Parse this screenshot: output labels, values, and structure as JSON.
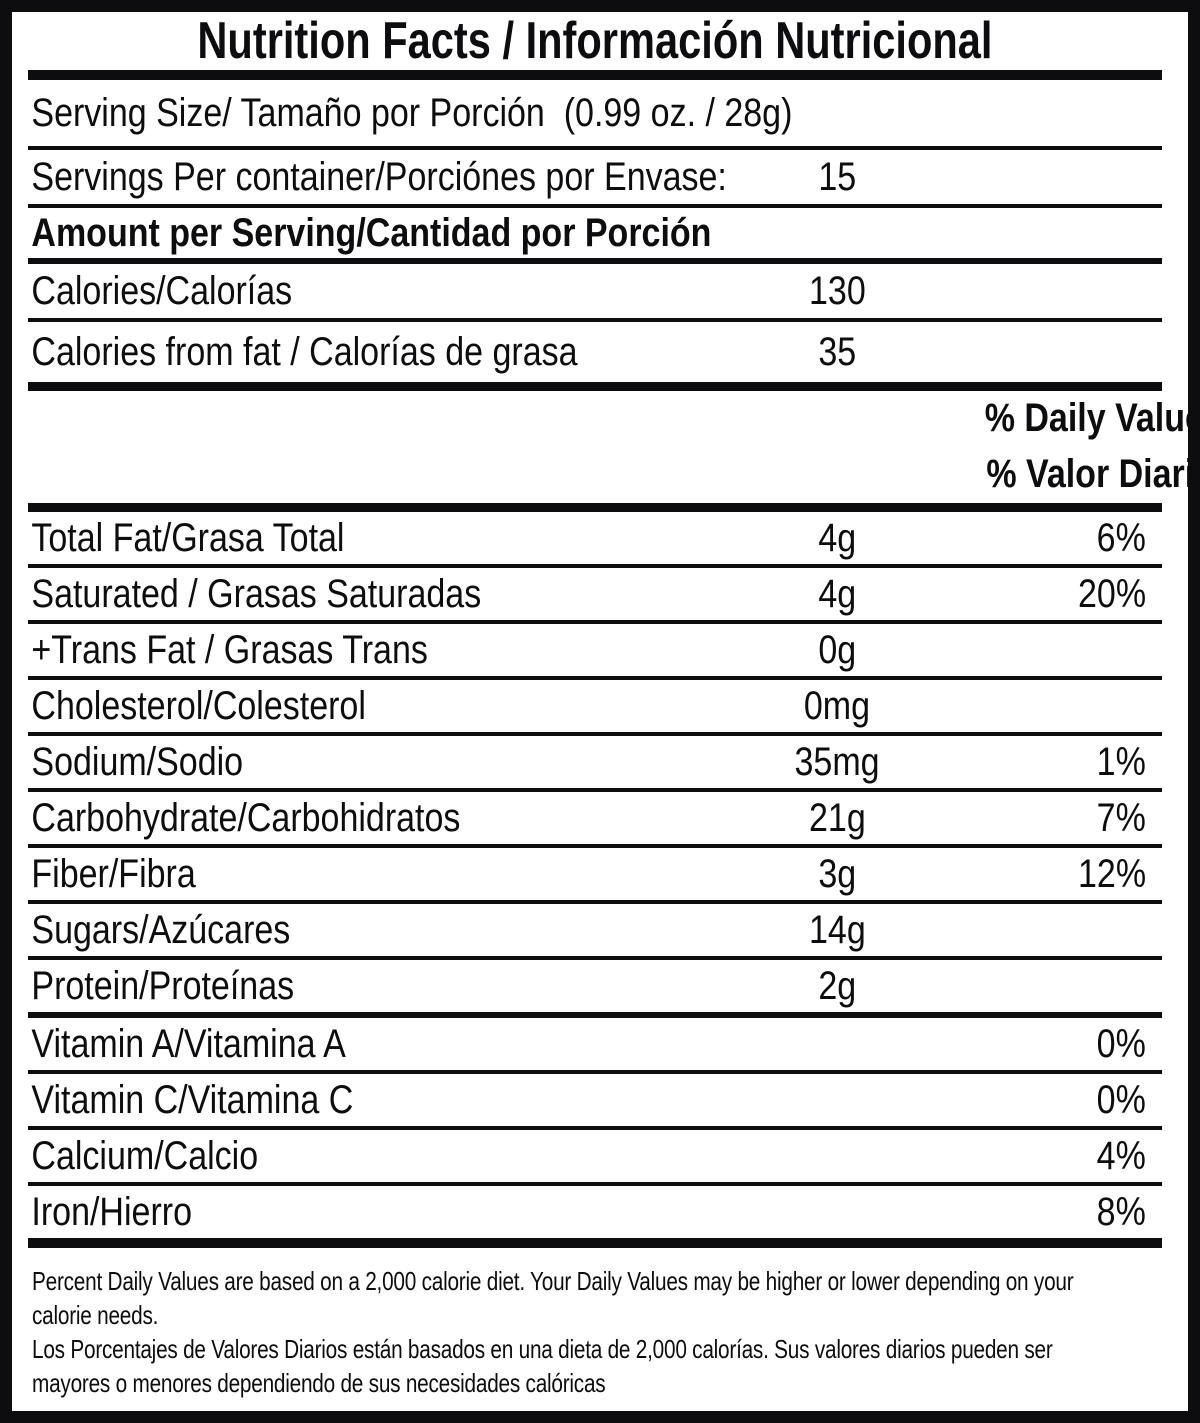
{
  "colors": {
    "ink": "#0d0d0f",
    "background": "#ffffff"
  },
  "header": {
    "title": "Nutrition Facts / Información Nutricional"
  },
  "serving": {
    "serving_size": "Serving Size/ Tamaño por Porción  (0.99 oz. / 28g)",
    "servings_per_container_label": "Servings Per container/Porciónes por Envase:",
    "servings_per_container_value": "15"
  },
  "section": {
    "amount_per_serving": "Amount per Serving/Cantidad por Porción",
    "calories_label": "Calories/Calorías",
    "calories_value": "130",
    "calories_from_fat_label": "Calories from fat / Calorías de grasa",
    "calories_from_fat_value": "35",
    "daily_value_header_en": "% Daily Value",
    "daily_value_header_es": "% Valor Diario"
  },
  "nutrients": [
    {
      "label": "Total Fat/Grasa Total",
      "amount": "4g",
      "dv": "6%"
    },
    {
      "label": "Saturated / Grasas Saturadas",
      "amount": "4g",
      "dv": "20%"
    },
    {
      "label": "+Trans Fat / Grasas Trans",
      "amount": "0g",
      "dv": ""
    },
    {
      "label": "Cholesterol/Colesterol",
      "amount": "0mg",
      "dv": ""
    },
    {
      "label": "Sodium/Sodio",
      "amount": "35mg",
      "dv": "1%"
    },
    {
      "label": "Carbohydrate/Carbohidratos",
      "amount": "21g",
      "dv": "7%"
    },
    {
      "label": "Fiber/Fibra",
      "amount": "3g",
      "dv": "12%"
    },
    {
      "label": "Sugars/Azúcares",
      "amount": "14g",
      "dv": ""
    },
    {
      "label": "Protein/Proteínas",
      "amount": "2g",
      "dv": ""
    },
    {
      "label": "Vitamin A/Vitamina A",
      "amount": "",
      "dv": "0%"
    },
    {
      "label": "Vitamin C/Vitamina C",
      "amount": "",
      "dv": "0%"
    },
    {
      "label": "Calcium/Calcio",
      "amount": "",
      "dv": "4%"
    },
    {
      "label": "Iron/Hierro",
      "amount": "",
      "dv": "8%"
    }
  ],
  "footnotes": {
    "en": "Percent Daily Values are based on a 2,000 calorie diet. Your Daily Values may be higher or lower depending on your\ncalorie needs.",
    "es": "Los Porcentajes de Valores Diarios están basados en una dieta de 2,000 calorías. Sus valores diarios pueden ser\nmayores o menores dependiendo de sus necesidades calóricas"
  }
}
